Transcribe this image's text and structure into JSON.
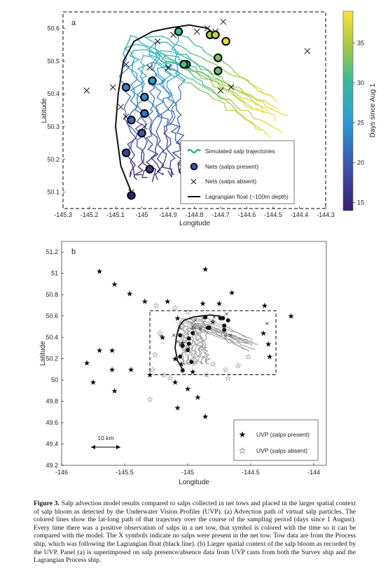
{
  "chart_data": [
    {
      "panel": "a",
      "type": "scatter",
      "xlabel": "Longitude",
      "ylabel": "Latitude",
      "xlim": [
        -145.3,
        -144.3
      ],
      "ylim": [
        50.05,
        50.65
      ],
      "xticks": [
        "-145.3",
        "-145.2",
        "-145.1",
        "-145",
        "-144.9",
        "-144.8",
        "-144.7",
        "-144.6",
        "-144.5",
        "-144.4",
        "-144.3"
      ],
      "yticks": [
        "50.1",
        "50.2",
        "50.3",
        "50.4",
        "50.5",
        "50.6"
      ],
      "colorbar": {
        "label": "Days since Aug 1",
        "range": [
          14,
          39
        ],
        "ticks": [
          "15",
          "20",
          "25",
          "30",
          "35"
        ]
      },
      "legend": [
        "Simulated salp trajectories",
        "Nets (salps present)",
        "Nets (salps absent)",
        "Lagrangian float (~100m depth)"
      ],
      "legend_position": "lower-right",
      "float_track": [
        [
          -145.04,
          50.1
        ],
        [
          -145.08,
          50.18
        ],
        [
          -145.1,
          50.3
        ],
        [
          -145.09,
          50.4
        ],
        [
          -145.07,
          50.5
        ],
        [
          -145.03,
          50.56
        ],
        [
          -144.96,
          50.59
        ],
        [
          -144.9,
          50.6
        ],
        [
          -144.82,
          50.61
        ],
        [
          -144.75,
          50.6
        ],
        [
          -144.72,
          50.58
        ]
      ],
      "nets_present": [
        {
          "x": -145.04,
          "y": 50.09,
          "day": 14
        },
        {
          "x": -144.97,
          "y": 50.17,
          "day": 16
        },
        {
          "x": -145.06,
          "y": 50.22,
          "day": 18
        },
        {
          "x": -145.0,
          "y": 50.28,
          "day": 20
        },
        {
          "x": -145.04,
          "y": 50.32,
          "day": 21
        },
        {
          "x": -144.99,
          "y": 50.34,
          "day": 22
        },
        {
          "x": -145.06,
          "y": 50.42,
          "day": 23
        },
        {
          "x": -144.99,
          "y": 50.39,
          "day": 24
        },
        {
          "x": -144.96,
          "y": 50.44,
          "day": 25
        },
        {
          "x": -144.83,
          "y": 50.49,
          "day": 30
        },
        {
          "x": -144.84,
          "y": 50.49,
          "day": 31
        },
        {
          "x": -144.71,
          "y": 50.47,
          "day": 32
        },
        {
          "x": -144.71,
          "y": 50.51,
          "day": 33
        },
        {
          "x": -144.74,
          "y": 50.58,
          "day": 35
        },
        {
          "x": -144.72,
          "y": 50.58,
          "day": 36
        },
        {
          "x": -144.68,
          "y": 50.56,
          "day": 38
        },
        {
          "x": -144.86,
          "y": 50.59,
          "day": 30
        }
      ],
      "nets_absent": [
        [
          -145.21,
          50.41
        ],
        [
          -145.11,
          50.42
        ],
        [
          -145.08,
          50.36
        ],
        [
          -145.06,
          50.33
        ],
        [
          -144.99,
          50.3
        ],
        [
          -145.04,
          50.1
        ],
        [
          -144.97,
          50.48
        ],
        [
          -144.9,
          50.48
        ],
        [
          -144.84,
          50.49
        ],
        [
          -144.94,
          50.56
        ],
        [
          -144.88,
          50.58
        ],
        [
          -145.06,
          50.49
        ],
        [
          -144.79,
          50.59
        ],
        [
          -144.75,
          50.6
        ],
        [
          -144.72,
          50.59
        ],
        [
          -144.69,
          50.62
        ],
        [
          -144.7,
          50.41
        ],
        [
          -144.66,
          50.42
        ],
        [
          -144.37,
          50.53
        ]
      ]
    },
    {
      "panel": "b",
      "type": "scatter",
      "xlabel": "Longitude",
      "ylabel": "Latitude",
      "xlim": [
        -146,
        -143.9
      ],
      "ylim": [
        49.2,
        51.3
      ],
      "xticks": [
        "-146",
        "-145.5",
        "-145",
        "-144.5",
        "-144"
      ],
      "yticks": [
        "49.2",
        "49.4",
        "49.6",
        "49.8",
        "50",
        "50.2",
        "50.4",
        "50.6",
        "50.8",
        "51",
        "51.2"
      ],
      "legend": [
        "UVP (salps present)",
        "UVP (salps absent)"
      ],
      "scale_bar": "10 km",
      "uvp_present": [
        [
          -145.7,
          51.02
        ],
        [
          -144.86,
          51.04
        ],
        [
          -145.58,
          50.9
        ],
        [
          -145.46,
          50.81
        ],
        [
          -145.34,
          50.74
        ],
        [
          -145.16,
          50.74
        ],
        [
          -144.88,
          50.72
        ],
        [
          -144.65,
          50.82
        ],
        [
          -144.75,
          50.72
        ],
        [
          -144.39,
          50.7
        ],
        [
          -144.18,
          50.6
        ],
        [
          -145.08,
          50.58
        ],
        [
          -144.4,
          50.44
        ],
        [
          -144.36,
          50.34
        ],
        [
          -144.35,
          50.22
        ],
        [
          -145.7,
          50.28
        ],
        [
          -145.6,
          50.28
        ],
        [
          -145.8,
          50.16
        ],
        [
          -145.6,
          50.1
        ],
        [
          -145.45,
          50.1
        ],
        [
          -145.75,
          49.98
        ],
        [
          -145.58,
          49.9
        ],
        [
          -145.3,
          50.05
        ],
        [
          -145.1,
          49.98
        ],
        [
          -145.0,
          49.92
        ],
        [
          -144.92,
          49.84
        ],
        [
          -145.08,
          49.74
        ],
        [
          -144.86,
          49.66
        ],
        [
          -145.2,
          50.4
        ],
        [
          -145.1,
          50.2
        ],
        [
          -144.95,
          50.5
        ],
        [
          -144.8,
          50.55
        ],
        [
          -145.04,
          50.35
        ],
        [
          -145.05,
          50.15
        ],
        [
          -144.96,
          50.08
        ]
      ],
      "uvp_absent": [
        [
          -145.25,
          50.7
        ],
        [
          -145.1,
          50.68
        ],
        [
          -145.0,
          50.64
        ],
        [
          -145.22,
          50.44
        ],
        [
          -145.26,
          50.24
        ],
        [
          -145.28,
          50.1
        ],
        [
          -145.19,
          50.05
        ],
        [
          -145.14,
          50.02
        ],
        [
          -145.3,
          49.82
        ],
        [
          -144.55,
          49.56
        ],
        [
          -144.6,
          50.14
        ],
        [
          -144.7,
          50.1
        ],
        [
          -144.52,
          50.22
        ],
        [
          -144.85,
          50.05
        ],
        [
          -144.68,
          50.02
        ],
        [
          -144.9,
          50.3
        ],
        [
          -144.8,
          50.15
        ]
      ]
    }
  ],
  "caption": {
    "label": "Figure 3.",
    "text": " Salp advection model results compared to salps collected in net tows and placed in the larger spatial context of salp bloom as detected by the Underwater Vision Profiler (UVP). (a) Advection path of virtual salp particles. The colored lines show the lat-long path of that trajectory over the course of the sampling period (days since 1 August). Every time there was a positive observation of salps in a net tow, that symbol is colored with the time so it can be compared with the model. The X symbols indicate no salps were present in the net tow. Tow data are from the Process ship, which was following the Lagrangian float (black line). (b) Larger spatial context of the salp bloom as recorded by the UVP. Panel (a) is superimposed on salp presence/absence data from UVP casts from both the Survey ship and the Lagrangian Process ship."
  }
}
